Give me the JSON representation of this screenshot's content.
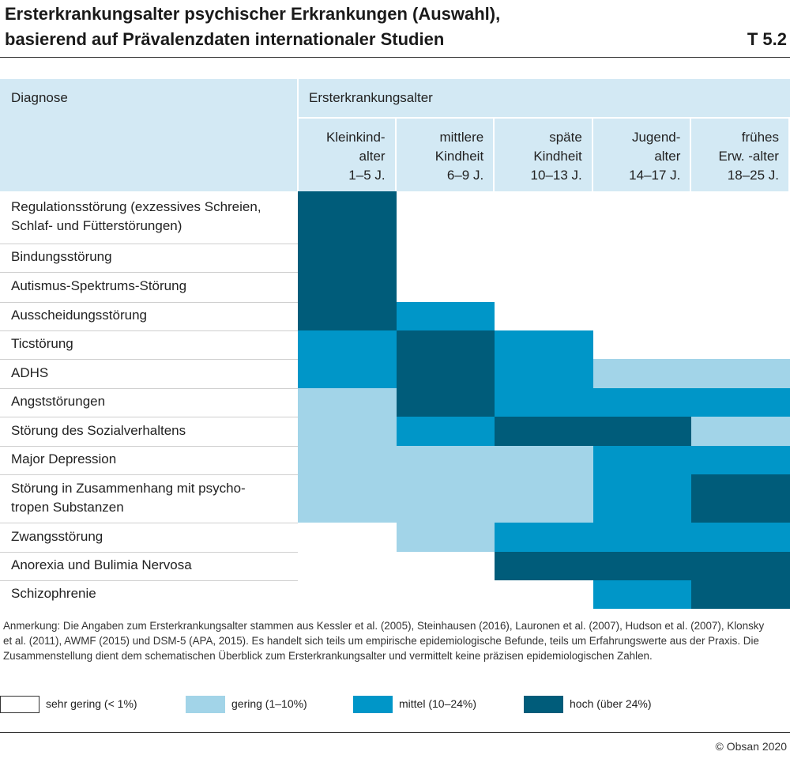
{
  "header": {
    "title_line1": "Ersterkrankungsalter psychischer Erkrankungen (Auswahl),",
    "title_line2": "basierend auf Prävalenzdaten internationaler Studien",
    "table_id": "T 5.2"
  },
  "chart_data": {
    "type": "heatmap",
    "row_header": "Diagnose",
    "group_header": "Ersterkrankungsalter",
    "columns": [
      "Kleinkind-\nalter\n1–5 J.",
      "mittlere\nKindheit\n6–9 J.",
      "späte\nKindheit\n10–13 J.",
      "Jugend-\nalter\n14–17 J.",
      "frühes\nErw. -alter\n18–25 J."
    ],
    "rows": [
      "Regulationsstörung (exzessives Schreien,\nSchlaf- und Fütterstörungen)",
      "Bindungsstörung",
      "Autismus-Spektrums-Störung",
      "Ausscheidungsstörung",
      "Ticstörung",
      "ADHS",
      "Angststörungen",
      "Störung des Sozialverhaltens",
      "Major Depression",
      "Störung in Zusammenhang mit psycho-\ntropen Substanzen",
      "Zwangsstörung",
      "Anorexia und Bulimia Nervosa",
      "Schizophrenie"
    ],
    "levels": [
      [
        3,
        0,
        0,
        0,
        0
      ],
      [
        3,
        0,
        0,
        0,
        0
      ],
      [
        3,
        0,
        0,
        0,
        0
      ],
      [
        3,
        2,
        0,
        0,
        0
      ],
      [
        2,
        3,
        2,
        0,
        0
      ],
      [
        2,
        3,
        2,
        1,
        1
      ],
      [
        1,
        3,
        2,
        2,
        2
      ],
      [
        1,
        2,
        3,
        3,
        1
      ],
      [
        1,
        1,
        1,
        2,
        2
      ],
      [
        1,
        1,
        1,
        2,
        3
      ],
      [
        0,
        1,
        2,
        2,
        2
      ],
      [
        0,
        0,
        3,
        3,
        3
      ],
      [
        0,
        0,
        0,
        2,
        3
      ]
    ],
    "legend": [
      {
        "label": "sehr gering (< 1%)",
        "color": "#ffffff"
      },
      {
        "label": "gering (1–10%)",
        "color": "#a2d4e8"
      },
      {
        "label": "mittel (10–24%)",
        "color": "#0096c8"
      },
      {
        "label": "hoch (über 24%)",
        "color": "#005c7a"
      }
    ]
  },
  "note": "Anmerkung: Die Angaben zum Ersterkrankungsalter stammen aus Kessler et al. (2005), Steinhausen (2016), Lauronen et al. (2007), Hudson et al. (2007), Klonsky et al. (2011), AWMF (2015) und DSM-5 (APA, 2015). Es handelt sich teils um empirische epidemiologische Befunde, teils um Erfahrungswerte aus der Praxis. Die Zusammenstellung dient dem schematischen Überblick zum Ersterkrankungsalter und vermittelt keine präzisen epidemiologischen Zahlen.",
  "source": "© Obsan 2020"
}
